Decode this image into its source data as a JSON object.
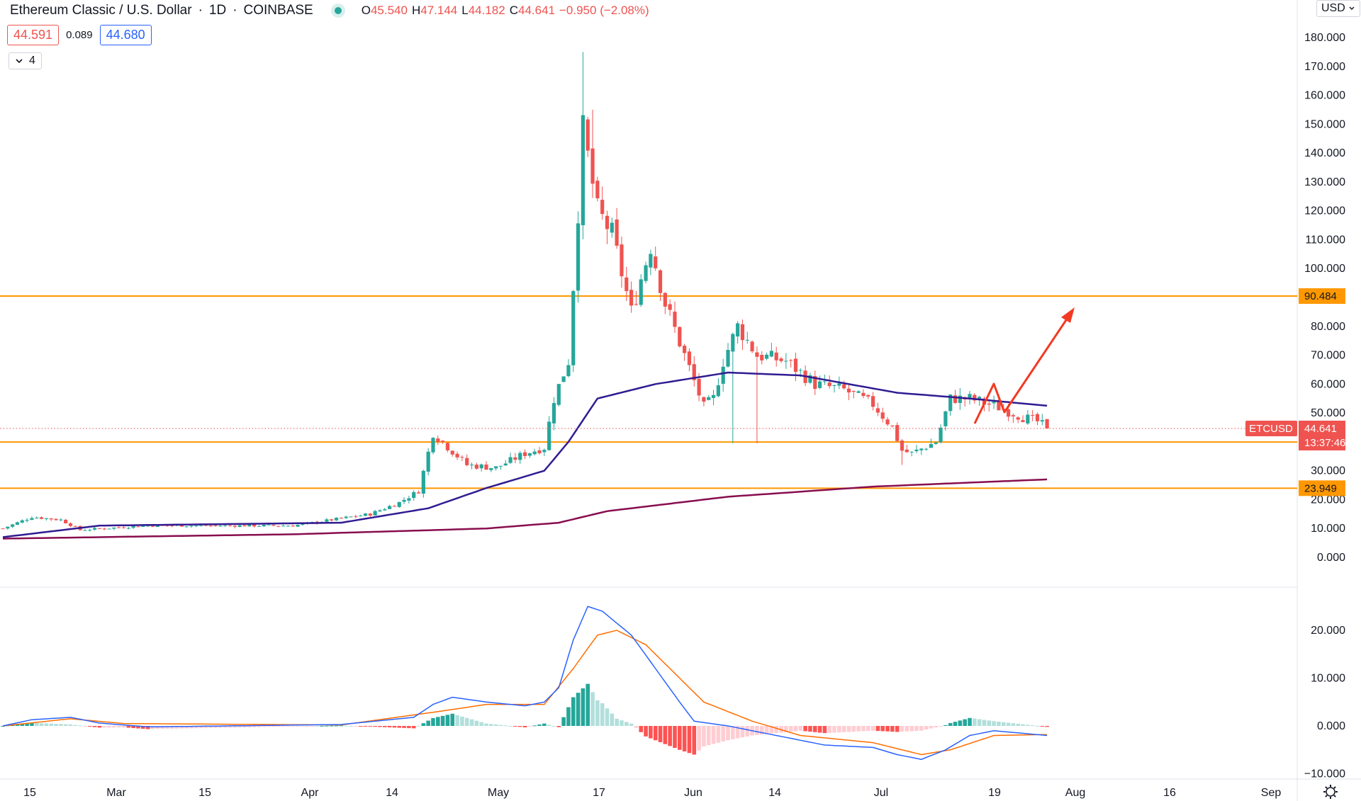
{
  "header": {
    "symbol_title": "Ethereum Classic / U.S. Dollar",
    "interval": "1D",
    "exchange": "COINBASE",
    "separator": "·",
    "ohlc": [
      {
        "label": "O",
        "value": "45.540"
      },
      {
        "label": "H",
        "value": "47.144"
      },
      {
        "label": "L",
        "value": "44.182"
      },
      {
        "label": "C",
        "value": "44.641"
      }
    ],
    "change": "−0.950 (−2.08%)"
  },
  "quote": {
    "bid": "44.591",
    "spread": "0.089",
    "ask": "44.680"
  },
  "indicators_toggle": {
    "icon": "chevron-down-icon",
    "count": "4"
  },
  "currency": {
    "label": "USD",
    "icon": "chevron-down-icon"
  },
  "colors": {
    "up": "#26a69a",
    "down": "#ef5350",
    "ma_fast": "#311b92",
    "ma_slow": "#880e4f",
    "level": "#ff9800",
    "macd": "#2962ff",
    "signal": "#ff6d00",
    "arrow": "#f23a22"
  },
  "chart_data": [
    {
      "type": "candlestick",
      "title": "Ethereum Classic / U.S. Dollar",
      "y_tick_labels": [
        "0.000",
        "10.000",
        "20.000",
        "30.000",
        "40.000",
        "50.000",
        "60.000",
        "70.000",
        "80.000",
        "90.000",
        "100.000",
        "110.000",
        "120.000",
        "130.000",
        "140.000",
        "150.000",
        "160.000",
        "170.000",
        "180.000"
      ],
      "ylim": [
        0,
        190
      ],
      "x_tick_labels": [
        "15",
        "Mar",
        "15",
        "Apr",
        "14",
        "May",
        "17",
        "Jun",
        "14",
        "Jul",
        "19",
        "Aug",
        "16",
        "Sep"
      ],
      "grid": false,
      "support_resistance": [
        90.484,
        39.956,
        23.949
      ],
      "current_price": {
        "symbol": "ETCUSD",
        "price": "44.641",
        "countdown": "13:37:46"
      },
      "level_labels": [
        "90.484",
        "39.956",
        "23.949"
      ],
      "candles_desc": "daily OHLC, approximate",
      "anchors": [
        [
          0,
          10
        ],
        [
          6,
          14
        ],
        [
          12,
          13
        ],
        [
          16,
          9.5
        ],
        [
          30,
          11
        ],
        [
          60,
          11
        ],
        [
          76,
          15
        ],
        [
          82,
          19
        ],
        [
          86,
          23
        ],
        [
          89,
          43
        ],
        [
          96,
          32
        ],
        [
          102,
          31
        ],
        [
          108,
          36
        ],
        [
          112,
          38
        ],
        [
          114,
          55
        ],
        [
          117,
          68
        ],
        [
          119,
          120
        ],
        [
          120,
          148
        ],
        [
          123,
          120
        ],
        [
          126,
          112
        ],
        [
          130,
          85
        ],
        [
          134,
          108
        ],
        [
          137,
          88
        ],
        [
          141,
          70
        ],
        [
          145,
          52
        ],
        [
          147,
          55
        ],
        [
          149,
          68
        ],
        [
          152,
          80
        ],
        [
          156,
          70
        ],
        [
          162,
          68
        ],
        [
          168,
          60
        ],
        [
          174,
          58
        ],
        [
          180,
          53
        ],
        [
          184,
          45
        ],
        [
          186,
          37
        ],
        [
          188,
          36
        ],
        [
          193,
          40
        ],
        [
          196,
          55
        ],
        [
          200,
          55
        ],
        [
          206,
          52
        ],
        [
          212,
          48
        ],
        [
          214,
          47
        ],
        [
          216,
          44.6
        ]
      ],
      "ma_fast_anchors": [
        [
          0,
          7
        ],
        [
          20,
          11
        ],
        [
          70,
          12
        ],
        [
          88,
          17
        ],
        [
          100,
          24
        ],
        [
          112,
          30
        ],
        [
          117,
          40
        ],
        [
          123,
          55
        ],
        [
          135,
          60
        ],
        [
          150,
          64
        ],
        [
          165,
          63
        ],
        [
          185,
          57
        ],
        [
          200,
          55
        ],
        [
          216,
          52.5
        ]
      ],
      "ma_slow_anchors": [
        [
          0,
          6.5
        ],
        [
          60,
          8
        ],
        [
          100,
          10
        ],
        [
          115,
          12
        ],
        [
          125,
          16
        ],
        [
          150,
          21
        ],
        [
          180,
          24.5
        ],
        [
          216,
          27
        ]
      ]
    },
    {
      "type": "line",
      "title": "MACD",
      "y_tick_labels": [
        "20.000",
        "10.000",
        "0.000",
        "−10.000"
      ],
      "ylim": [
        -10,
        24
      ],
      "series": [
        {
          "role": "macd",
          "anchors": [
            [
              0,
              0
            ],
            [
              6,
              1.3
            ],
            [
              14,
              1.8
            ],
            [
              20,
              0.6
            ],
            [
              30,
              -0.2
            ],
            [
              70,
              0.3
            ],
            [
              85,
              1.8
            ],
            [
              89,
              4.5
            ],
            [
              93,
              6
            ],
            [
              100,
              5
            ],
            [
              108,
              4.2
            ],
            [
              112,
              5
            ],
            [
              115,
              8
            ],
            [
              118,
              18
            ],
            [
              121,
              25
            ],
            [
              124,
              24
            ],
            [
              130,
              19
            ],
            [
              135,
              12
            ],
            [
              140,
              5
            ],
            [
              143,
              1
            ],
            [
              150,
              0
            ],
            [
              160,
              -2
            ],
            [
              170,
              -4
            ],
            [
              180,
              -4.5
            ],
            [
              185,
              -6
            ],
            [
              190,
              -7
            ],
            [
              195,
              -5
            ],
            [
              200,
              -2
            ],
            [
              205,
              -1
            ],
            [
              216,
              -2
            ]
          ]
        },
        {
          "role": "signal",
          "anchors": [
            [
              0,
              0
            ],
            [
              14,
              1.5
            ],
            [
              25,
              0.5
            ],
            [
              70,
              0.2
            ],
            [
              90,
              3
            ],
            [
              100,
              4.5
            ],
            [
              112,
              4.5
            ],
            [
              118,
              12
            ],
            [
              123,
              19
            ],
            [
              127,
              20
            ],
            [
              133,
              17
            ],
            [
              140,
              10
            ],
            [
              145,
              5
            ],
            [
              155,
              1
            ],
            [
              165,
              -2
            ],
            [
              180,
              -3.5
            ],
            [
              190,
              -6
            ],
            [
              196,
              -5
            ],
            [
              205,
              -2
            ],
            [
              216,
              -1.8
            ]
          ]
        }
      ]
    }
  ]
}
